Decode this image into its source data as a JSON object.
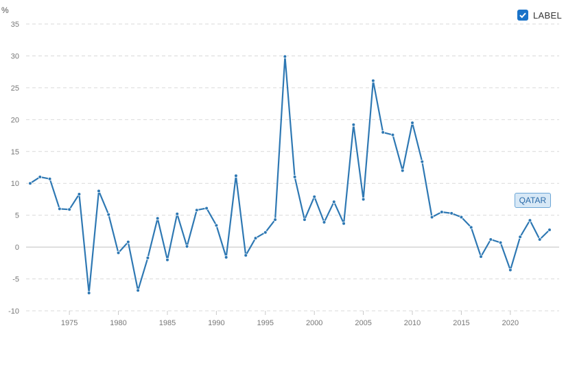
{
  "unit_label": "%",
  "legend": {
    "label": "LABEL",
    "checked": true
  },
  "series_tag": "QATAR",
  "colors": {
    "line": "#2e78b3",
    "grid": "#d9d9d9",
    "zero_line": "#bfbfbf",
    "legend_box": "#1a73c9",
    "tag_bg": "#d7e8f6",
    "tag_border": "#6aa5d6"
  },
  "chart_data": {
    "type": "line",
    "x": [
      1971,
      1972,
      1973,
      1974,
      1975,
      1976,
      1977,
      1978,
      1979,
      1980,
      1981,
      1982,
      1983,
      1984,
      1985,
      1986,
      1987,
      1988,
      1989,
      1990,
      1991,
      1992,
      1993,
      1994,
      1995,
      1996,
      1997,
      1998,
      1999,
      2000,
      2001,
      2002,
      2003,
      2004,
      2005,
      2006,
      2007,
      2008,
      2009,
      2010,
      2011,
      2012,
      2013,
      2014,
      2015,
      2016,
      2017,
      2018,
      2019,
      2020,
      2021,
      2022,
      2023,
      2024
    ],
    "series": [
      {
        "name": "QATAR",
        "values": [
          10,
          11,
          10.7,
          6,
          5.9,
          8.3,
          -7.2,
          8.8,
          5.1,
          -0.9,
          0.8,
          -6.8,
          -1.7,
          4.5,
          -2,
          5.2,
          0.1,
          5.8,
          6.1,
          3.4,
          -1.6,
          11.2,
          -1.3,
          1.4,
          2.3,
          4.3,
          29.9,
          11,
          4.3,
          7.9,
          3.9,
          7.1,
          3.7,
          19.2,
          7.5,
          26.1,
          18,
          17.6,
          12,
          19.5,
          13.4,
          4.7,
          5.5,
          5.3,
          4.7,
          3.1,
          -1.5,
          1.2,
          0.7,
          -3.6,
          1.6,
          4.2,
          1.2,
          2.7
        ]
      }
    ],
    "x_ticks": [
      1975,
      1980,
      1985,
      1990,
      1995,
      2000,
      2005,
      2010,
      2015,
      2020
    ],
    "y_ticks": [
      -10,
      -5,
      0,
      5,
      10,
      15,
      20,
      25,
      30,
      35
    ],
    "ylim": [
      -10,
      35
    ],
    "xlim": [
      1971,
      2024
    ],
    "grid": true,
    "legend_position": "top-right"
  }
}
